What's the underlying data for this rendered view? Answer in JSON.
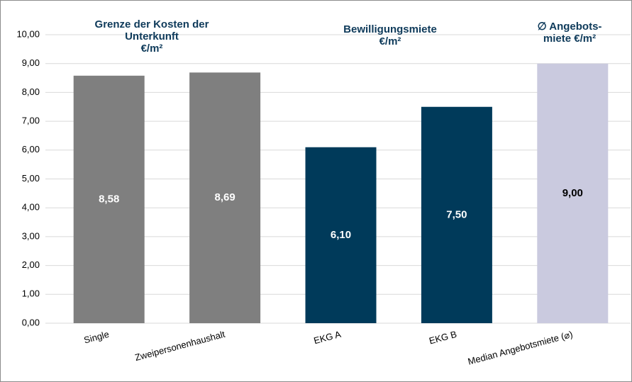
{
  "chart_data": {
    "type": "bar",
    "categories": [
      "Single",
      "Zweipersonenhaushalt",
      "EKG A",
      "EKG B",
      "Median Angebotsmiete (⌀)"
    ],
    "values": [
      8.58,
      8.69,
      6.1,
      7.5,
      9.0
    ],
    "value_labels": [
      "8,58",
      "8,69",
      "6,10",
      "7,50",
      "9,00"
    ],
    "colors": [
      "#7f7f7f",
      "#7f7f7f",
      "#003a5a",
      "#003a5a",
      "#cacadf"
    ],
    "value_label_colors": [
      "#ffffff",
      "#ffffff",
      "#ffffff",
      "#ffffff",
      "#000000"
    ],
    "ylim": [
      0,
      10
    ],
    "yticks": [
      {
        "value": 0,
        "label": "0,00"
      },
      {
        "value": 1,
        "label": "1,00"
      },
      {
        "value": 2,
        "label": "2,00"
      },
      {
        "value": 3,
        "label": "3,00"
      },
      {
        "value": 4,
        "label": "4,00"
      },
      {
        "value": 5,
        "label": "5,00"
      },
      {
        "value": 6,
        "label": "6,00"
      },
      {
        "value": 7,
        "label": "7,00"
      },
      {
        "value": 8,
        "label": "8,00"
      },
      {
        "value": 9,
        "label": "9,00"
      },
      {
        "value": 10,
        "label": "10,00"
      }
    ],
    "grid": true,
    "annotations": [
      {
        "text": [
          "Grenze der Kosten der",
          "Unterkunft",
          "€/m²"
        ]
      },
      {
        "text": [
          "Bewilligungsmiete",
          "€/m²"
        ]
      },
      {
        "text": [
          "∅ Angebots-",
          "miete €/m²"
        ]
      }
    ]
  }
}
